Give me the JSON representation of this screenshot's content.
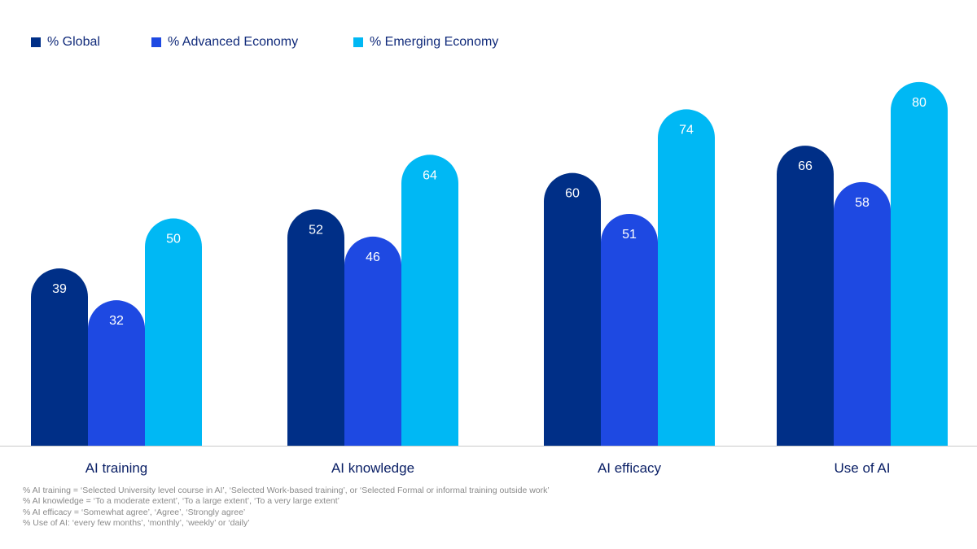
{
  "chart_data": {
    "type": "bar",
    "categories": [
      "AI training",
      "AI knowledge",
      "AI efficacy",
      "Use of AI"
    ],
    "series": [
      {
        "name": "% Global",
        "values": [
          39,
          52,
          60,
          66
        ],
        "color": "#002f87"
      },
      {
        "name": "% Advanced Economy",
        "values": [
          32,
          46,
          51,
          58
        ],
        "color": "#1e49e2"
      },
      {
        "name": "% Emerging Economy",
        "values": [
          50,
          64,
          74,
          80
        ],
        "color": "#00b8f4"
      }
    ],
    "title": "",
    "xlabel": "",
    "ylabel": "",
    "ylim": [
      0,
      90
    ],
    "grid": false,
    "legend_position": "top-left"
  },
  "footnotes": [
    "% AI training = ‘Selected University level course in AI’, ‘Selected Work-based training’, or ‘Selected Formal or informal training outside work’",
    "% AI knowledge = ‘To a moderate extent’, ‘To a large extent’, ‘To a very large extent’",
    "% AI efficacy = ‘Somewhat agree’, ‘Agree’, ‘Strongly agree’",
    "% Use of AI: ‘every few months’, ‘monthly’, ‘weekly’ or ‘daily’"
  ],
  "colors": {
    "axis": "#c9c9c9",
    "category_text": "#0b2066",
    "footnote_text": "#8a8a8a"
  }
}
